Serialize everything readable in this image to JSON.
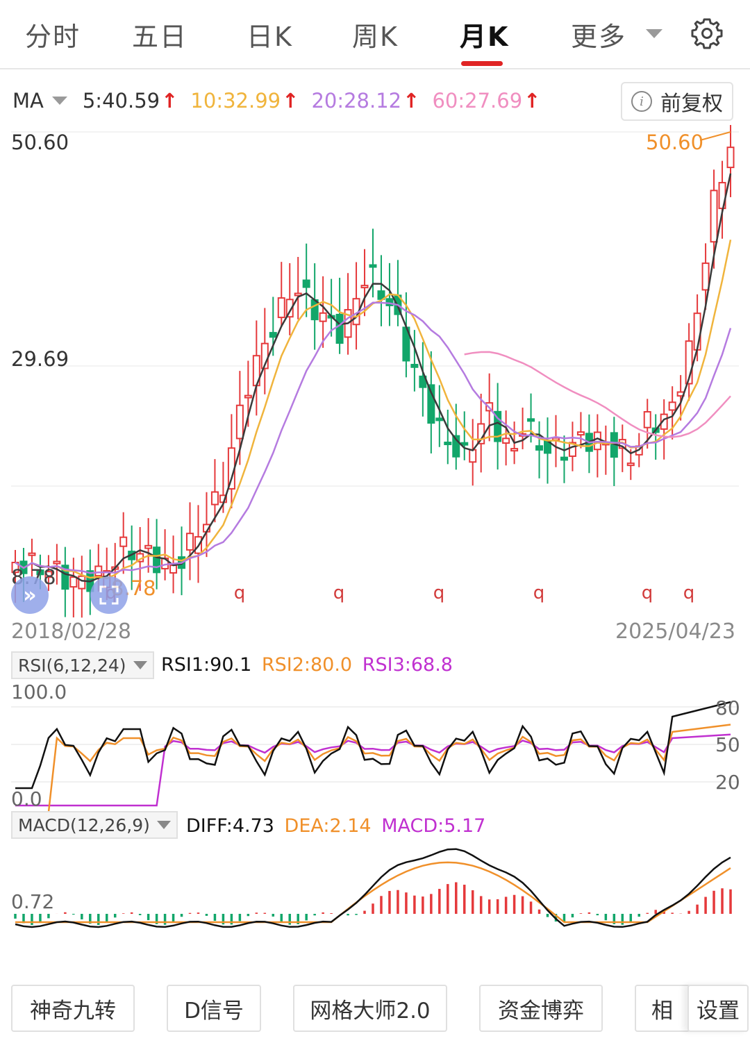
{
  "tabs": [
    {
      "label": "分时",
      "active": false
    },
    {
      "label": "五日",
      "active": false
    },
    {
      "label": "日K",
      "active": false
    },
    {
      "label": "周K",
      "active": false
    },
    {
      "label": "月K",
      "active": true
    },
    {
      "label": "更多",
      "active": false
    }
  ],
  "icons": {
    "more_dropdown": "chevron-down-icon",
    "settings": "gear-icon",
    "info": "info-icon",
    "expand_left": "double-chevron-icon",
    "fullscreen": "expand-icon"
  },
  "colors": {
    "accent_red": "#e02424",
    "up_candle": "#e5393b",
    "down_candle": "#12a66a",
    "ma5": "#3a3a3a",
    "ma10": "#f0b43c",
    "ma20": "#b57be0",
    "ma60": "#f08ec0",
    "orange": "#f0902a",
    "purple": "#c030d0"
  },
  "ma_legend": {
    "label": "MA",
    "ma5": "5:40.59",
    "ma10": "10:32.99",
    "ma20": "20:28.12",
    "ma60": "60:27.69",
    "arrow": "↑"
  },
  "adjust_button": {
    "label": "前复权",
    "info_glyph": "i"
  },
  "main_chart": {
    "price_high": "50.60",
    "price_mid": "29.69",
    "price_low": "8.78",
    "latest_high_tag": "50.60",
    "low_tag": "8.78",
    "start_date": "2018/02/28",
    "end_date": "2025/04/23",
    "signal_mark": "q",
    "signal_count": 7
  },
  "rsi": {
    "selector": "RSI(6,12,24)",
    "rsi1": "RSI1:90.1",
    "rsi2": "RSI2:80.0",
    "rsi3": "RSI3:68.8",
    "axis_top": "100.0",
    "axis_bottom": "0.0",
    "level_80": "80",
    "level_50": "50",
    "level_20": "20"
  },
  "macd": {
    "selector": "MACD(12,26,9)",
    "diff": "DIFF:4.73",
    "dea": "DEA:2.14",
    "macd": "MACD:5.17",
    "axis_label": "0.72"
  },
  "bottom_buttons": [
    {
      "label": "神奇九转"
    },
    {
      "label": "D信号"
    },
    {
      "label": "网格大师2.0"
    },
    {
      "label": "资金博弈"
    },
    {
      "label": "相"
    },
    {
      "label": "设置"
    }
  ]
}
